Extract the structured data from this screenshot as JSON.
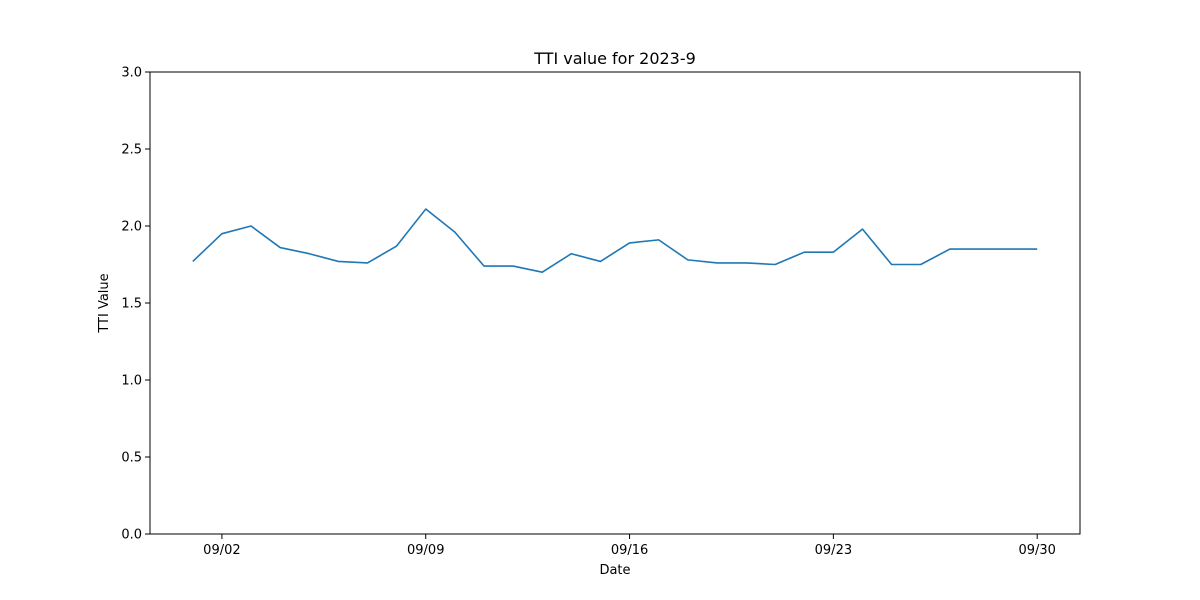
{
  "chart_data": {
    "type": "line",
    "title": "TTI value for 2023-9",
    "xlabel": "Date",
    "ylabel": "TTI Value",
    "ylim": [
      0,
      3
    ],
    "yticks": [
      0.0,
      0.5,
      1.0,
      1.5,
      2.0,
      2.5,
      3.0
    ],
    "ytick_labels": [
      "0.0",
      "0.5",
      "1.0",
      "1.5",
      "2.0",
      "2.5",
      "3.0"
    ],
    "xlim": [
      "2023-08-30.53",
      "2023-10-01.47"
    ],
    "xticks": [
      "2023-09-02",
      "2023-09-09",
      "2023-09-16",
      "2023-09-23",
      "2023-09-30"
    ],
    "xtick_labels": [
      "09/02",
      "09/09",
      "09/16",
      "09/23",
      "09/30"
    ],
    "grid": false,
    "series_color": "#1f77b4",
    "x": [
      "2023-09-01",
      "2023-09-02",
      "2023-09-03",
      "2023-09-04",
      "2023-09-05",
      "2023-09-06",
      "2023-09-07",
      "2023-09-08",
      "2023-09-09",
      "2023-09-10",
      "2023-09-11",
      "2023-09-12",
      "2023-09-13",
      "2023-09-14",
      "2023-09-15",
      "2023-09-16",
      "2023-09-17",
      "2023-09-18",
      "2023-09-19",
      "2023-09-20",
      "2023-09-21",
      "2023-09-22",
      "2023-09-23",
      "2023-09-24",
      "2023-09-25",
      "2023-09-26",
      "2023-09-27",
      "2023-09-28",
      "2023-09-29",
      "2023-09-30"
    ],
    "series": [
      {
        "values": [
          1.77,
          1.95,
          2.0,
          1.86,
          1.82,
          1.77,
          1.76,
          1.87,
          2.11,
          1.96,
          1.74,
          1.74,
          1.7,
          1.82,
          1.77,
          1.89,
          1.91,
          1.78,
          1.76,
          1.76,
          1.75,
          1.83,
          1.83,
          1.98,
          1.75,
          1.75,
          1.85,
          1.85,
          1.85,
          1.85
        ]
      }
    ]
  }
}
